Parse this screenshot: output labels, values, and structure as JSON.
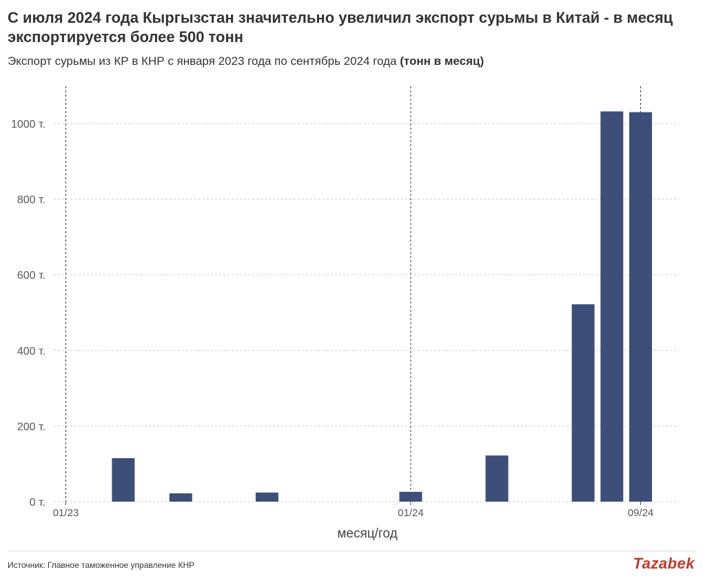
{
  "header": {
    "title": "С июля 2024 года Кыргызстан значительно увеличил экспорт сурьмы в Китай - в месяц экспортируется более 500 тонн",
    "subtitle_main": "Экспорт сурьмы из КР в КНР с января 2023 года по сентябрь 2024 года",
    "subtitle_unit": "(тонн в месяц)"
  },
  "footer": {
    "source": "Источник: Главное таможенное управление КНР",
    "brand": "Tazabek"
  },
  "colors": {
    "bar": "#3d4f78",
    "grid": "#cccccc",
    "brand": "#c0392b"
  },
  "chart_data": {
    "type": "bar",
    "xlabel": "месяц/год",
    "ylabel": "",
    "ylim": [
      0,
      1100
    ],
    "yticks": [
      0,
      200,
      400,
      600,
      800,
      1000
    ],
    "ytick_labels": [
      "0 т.",
      "200 т.",
      "400 т.",
      "600 т.",
      "800 т.",
      "1000 т."
    ],
    "categories": [
      "01/23",
      "02/23",
      "03/23",
      "04/23",
      "05/23",
      "06/23",
      "07/23",
      "08/23",
      "09/23",
      "10/23",
      "11/23",
      "12/23",
      "01/24",
      "02/24",
      "03/24",
      "04/24",
      "05/24",
      "06/24",
      "07/24",
      "08/24",
      "09/24"
    ],
    "values": [
      0,
      0,
      115,
      0,
      22,
      0,
      0,
      24,
      0,
      0,
      0,
      0,
      26,
      0,
      0,
      122,
      0,
      0,
      522,
      1032,
      1030
    ],
    "xtick_labels": [
      {
        "category": "01/23",
        "label": "01/23"
      },
      {
        "category": "01/24",
        "label": "01/24"
      },
      {
        "category": "09/24",
        "label": "09/24"
      }
    ],
    "reference_lines": [
      "01/23",
      "01/24",
      "09/24"
    ],
    "grid": true
  }
}
